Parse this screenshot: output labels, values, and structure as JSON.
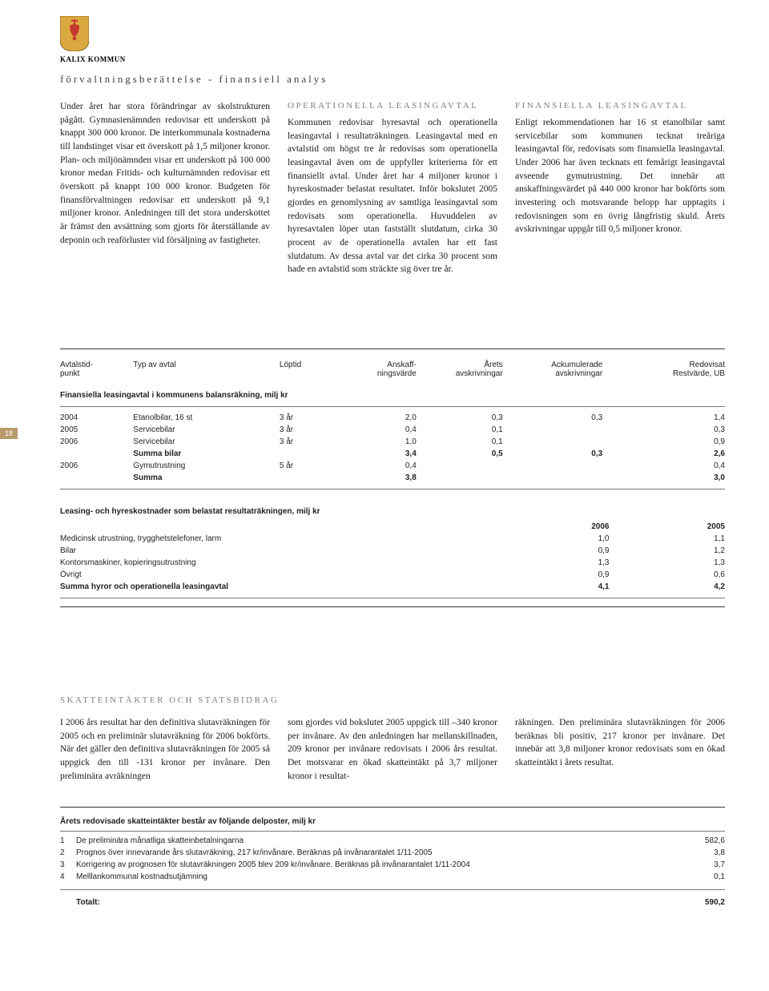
{
  "header": {
    "org_name": "KALIX KOMMUN",
    "section_title": "förvaltningsberättelse - finansiell analys"
  },
  "page_number": "18",
  "body": {
    "col1": "Under året har stora förändringar av skolstrukturen pågått. Gymnasienämnden redovisar ett underskott på knappt 300 000 kronor. De interkommunala kostnaderna till landstinget visar ett överskott på 1,5 miljoner kronor. Plan- och miljönämnden visar ett underskott på 100 000 kronor medan Fritids- och kulturnämnden redovisar ett överskott på knappt 100 000 kronor. Budgeten för finansförvaltningen redovisar ett underskott på 9,1 miljoner kronor. Anledningen till det stora underskottet är främst den avsättning som gjorts för återställande av deponin och reaförluster vid försäljning av fastigheter.",
    "col2_heading": "OPERATIONELLA LEASINGAVTAL",
    "col2": "Kommunen redovisar hyresavtal och operationella leasingavtal i resultaträkningen. Leasingavtal med en avtalstid om högst tre år redovisas som operationella leasingavtal även om de uppfyller kriterierna för ett finansiellt avtal. Under året har 4 miljoner kronor i hyreskostnader belastat resultatet. Inför bokslutet 2005 gjordes en genomlysning av samtliga leasingavtal som redovisats som operationella. Huvuddelen av hyresavtalen löper utan fastställt slutdatum, cirka 30 procent av de operationella avtalen har ett fast slutdatum. Av dessa avtal var det cirka 30 procent som hade en avtalstid som sträckte sig över tre år.",
    "col3_heading": "FINANSIELLA LEASINGAVTAL",
    "col3": "Enligt rekommendationen har 16 st etanolbilar samt servicebilar som kommunen tecknat treåriga leasingavtal för, redovisats som finansiella leasingavtal. Under 2006 har även tecknats ett femårigt leasingavtal avseende gymutrustning. Det innebär att anskaffningsvärdet på 440 000 kronor har bokförts som investering och motsvarande belopp har upptagits i redovisningen som en övrig långfristig skuld. Årets avskrivningar uppgår till 0,5 miljoner kronor."
  },
  "table1": {
    "headers": {
      "c1": "Avtalstid-\npunkt",
      "c2": "Typ av avtal",
      "c3": "Löptid",
      "c4": "Anskaff-\nningsvärde",
      "c5": "Årets\navskrivningar",
      "c6": "Ackumulerade\navskrivningar",
      "c7": "Redovisat\nRestvärde, UB"
    },
    "subtitle": "Finansiella leasingavtal i kommunens balansräkning, milj kr",
    "rows": [
      {
        "c1": "2004",
        "c2": "Etanolbilar, 16 st",
        "c3": "3 år",
        "c4": "2,0",
        "c5": "0,3",
        "c6": "0,3",
        "c7": "1,4"
      },
      {
        "c1": "2005",
        "c2": "Servicebilar",
        "c3": "3 år",
        "c4": "0,4",
        "c5": "0,1",
        "c6": "",
        "c7": "0,3"
      },
      {
        "c1": "2006",
        "c2": "Servicebilar",
        "c3": "3 år",
        "c4": "1,0",
        "c5": "0,1",
        "c6": "",
        "c7": "0,9"
      },
      {
        "c1": "",
        "c2": "Summa bilar",
        "c3": "",
        "c4": "3,4",
        "c5": "0,5",
        "c6": "0,3",
        "c7": "2,6",
        "bold": true
      },
      {
        "c1": "2006",
        "c2": "Gymutrustning",
        "c3": "5 år",
        "c4": "0,4",
        "c5": "",
        "c6": "",
        "c7": "0,4"
      },
      {
        "c1": "",
        "c2": "Summa",
        "c3": "",
        "c4": "3,8",
        "c5": "",
        "c6": "",
        "c7": "3,0",
        "bold": true
      }
    ],
    "section2_title": "Leasing- och hyreskostnader som belastat resultaträkningen, milj kr",
    "section2_year1": "2006",
    "section2_year2": "2005",
    "section2_rows": [
      {
        "label": "Medicinsk utrustning, trygghetstelefoner, larm",
        "v1": "1,0",
        "v2": "1,1"
      },
      {
        "label": "Bilar",
        "v1": "0,9",
        "v2": "1,2"
      },
      {
        "label": "Kontorsmaskiner, kopieringsutrustning",
        "v1": "1,3",
        "v2": "1,3"
      },
      {
        "label": "Övrigt",
        "v1": "0,9",
        "v2": "0,6"
      },
      {
        "label": "Summa hyror och operationella leasingavtal",
        "v1": "4,1",
        "v2": "4,2",
        "bold": true
      }
    ]
  },
  "section2": {
    "title": "SKATTEINTÄKTER OCH STATSBIDRAG",
    "col1": "I 2006 års resultat har den definitiva slutavräkningen för 2005 och en preliminär slutavräkning för 2006 bokförts. När det gäller den definitiva slutavräkningen för 2005 så uppgick den till -131 kronor per invånare. Den preliminära avräkningen",
    "col2": "som gjordes vid bokslutet 2005 uppgick till –340 kronor per invånare. Av den anledningen har mellanskillnaden, 209 kronor per invånare redovisats i 2006 års resultat. Det motsvarar en ökad skatteintäkt på 3,7 miljoner kronor i resultat-",
    "col3": "räkningen. Den preliminära slutavräkningen för 2006 beräknas bli positiv, 217 kronor per invånare. Det innebär att 3,8 miljoner kronor redovisats som en ökad skatteintäkt i årets resultat."
  },
  "table2": {
    "title": "Årets redovisade skatteintäkter består av följande delposter, milj kr",
    "rows": [
      {
        "n": "1",
        "label": "De preliminära månatliga skatteinbetalningarna",
        "v": "582,6"
      },
      {
        "n": "2",
        "label": "Prognos över innevarande års slutavräkning, 217 kr/invånare. Beräknas på invånarantalet 1/11-2005",
        "v": "3,8"
      },
      {
        "n": "3",
        "label": "Korrigering av prognosen för slutavräkningen 2005 blev 209 kr/invånare. Beräknas på invånarantalet 1/11-2004",
        "v": "3,7"
      },
      {
        "n": "4",
        "label": "Melllankommunal kostnadsutjämning",
        "v": "0,1"
      }
    ],
    "total_label": "Totalt:",
    "total_value": "590,2"
  },
  "colors": {
    "logo_red": "#c53a2f",
    "logo_gold": "#d9a83e",
    "page_tab": "#b89a6a",
    "gray_heading": "#808080",
    "text": "#1a1a1a"
  }
}
